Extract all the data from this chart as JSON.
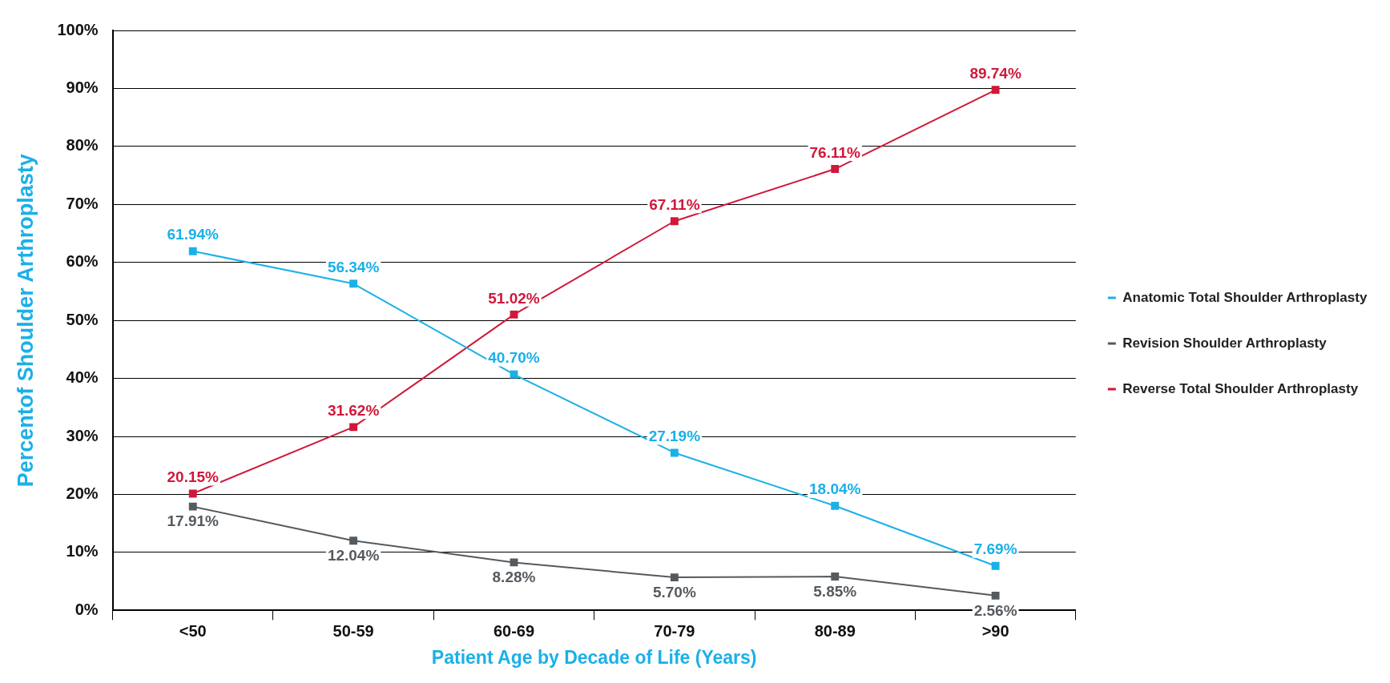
{
  "chart_data": {
    "type": "line",
    "xlabel": "Patient Age by Decade of Life (Years)",
    "ylabel": "Percentof Shoulder Arthroplasty",
    "categories": [
      "<50",
      "50-59",
      "60-69",
      "70-79",
      "80-89",
      ">90"
    ],
    "ylim": [
      0,
      100
    ],
    "yticks": [
      {
        "value": 0,
        "label": "0%"
      },
      {
        "value": 10,
        "label": "10%"
      },
      {
        "value": 20,
        "label": "20%"
      },
      {
        "value": 30,
        "label": "30%"
      },
      {
        "value": 40,
        "label": "40%"
      },
      {
        "value": 50,
        "label": "50%"
      },
      {
        "value": 60,
        "label": "60%"
      },
      {
        "value": 70,
        "label": "70%"
      },
      {
        "value": 80,
        "label": "80%"
      },
      {
        "value": 90,
        "label": "90%"
      },
      {
        "value": 100,
        "label": "100%"
      }
    ],
    "grid": "y",
    "legend": "right",
    "marker": "square",
    "line_style": "solid",
    "series": [
      {
        "name": "Anatomic Total Shoulder Arthroplasty",
        "color": "#1ab0e8",
        "values": [
          61.94,
          56.34,
          40.7,
          27.19,
          18.04,
          7.69
        ],
        "value_labels": [
          "61.94%",
          "56.34%",
          "40.70%",
          "27.19%",
          "18.04%",
          "7.69%"
        ]
      },
      {
        "name": "Revision Shoulder Arthroplasty",
        "color": "#555a5f",
        "values": [
          17.91,
          12.04,
          8.28,
          5.7,
          5.85,
          2.56
        ],
        "value_labels": [
          "17.91%",
          "12.04%",
          "8.28%",
          "5.70%",
          "5.85%",
          "2.56%"
        ]
      },
      {
        "name": "Reverse Total Shoulder Arthroplasty",
        "color": "#d0183a",
        "values": [
          20.15,
          31.62,
          51.02,
          67.11,
          76.11,
          89.74
        ],
        "value_labels": [
          "20.15%",
          "31.62%",
          "51.02%",
          "67.11%",
          "76.11%",
          "89.74%"
        ]
      }
    ]
  }
}
